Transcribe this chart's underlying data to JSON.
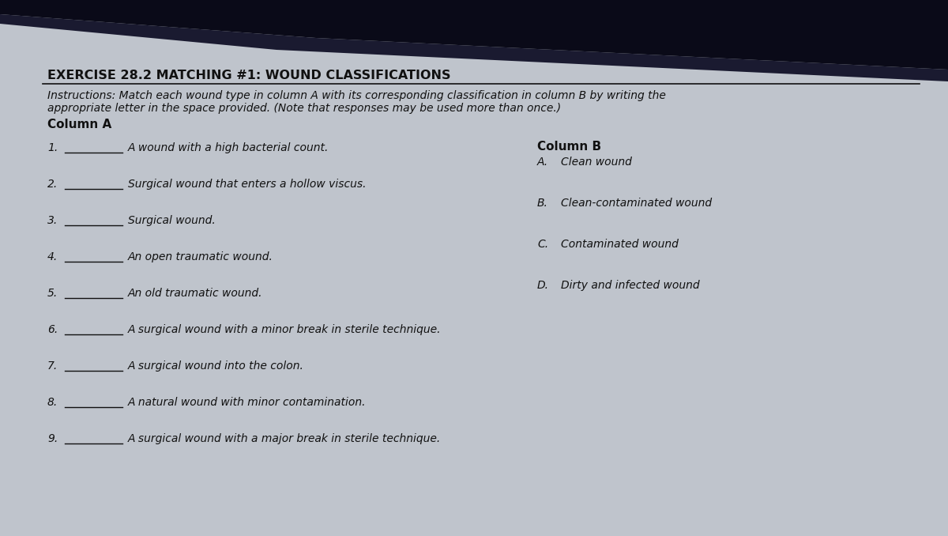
{
  "title": "EXERCISE 28.2 MATCHING #1: WOUND CLASSIFICATIONS",
  "instructions_line1": "Instructions: Match each wound type in column A with its corresponding classification in column B by writing the",
  "instructions_line2": "appropriate letter in the space provided. (Note that responses may be used more than once.)",
  "col_a_header": "Column A",
  "col_b_header": "Column B",
  "col_a_numbers": [
    "1.",
    "2.",
    "3.",
    "4.",
    "5.",
    "6.",
    "7.",
    "8.",
    "9."
  ],
  "col_a_lines": [
    "________",
    "________",
    "________",
    "________",
    "________",
    "________",
    "________",
    "________",
    "________"
  ],
  "col_a_texts": [
    "A wound with a high bacterial count.",
    "Surgical wound that enters a hollow viscus.",
    "Surgical wound.",
    "An open traumatic wound.",
    "An old traumatic wound.",
    "A surgical wound with a minor break in sterile technique.",
    "A surgical wound into the colon.",
    "A natural wound with minor contamination.",
    "A surgical wound with a major break in sterile technique."
  ],
  "col_b_letters": [
    "A.",
    "B.",
    "C.",
    "D."
  ],
  "col_b_texts": [
    "Clean wound",
    "Clean-contaminated wound",
    "Contaminated wound",
    "Dirty and infected wound"
  ],
  "bg_color": "#bfc4cc",
  "text_color": "#111111",
  "title_fontsize": 11.5,
  "instructions_fontsize": 10,
  "header_fontsize": 11,
  "item_fontsize": 10,
  "col_b_item_fontsize": 10
}
